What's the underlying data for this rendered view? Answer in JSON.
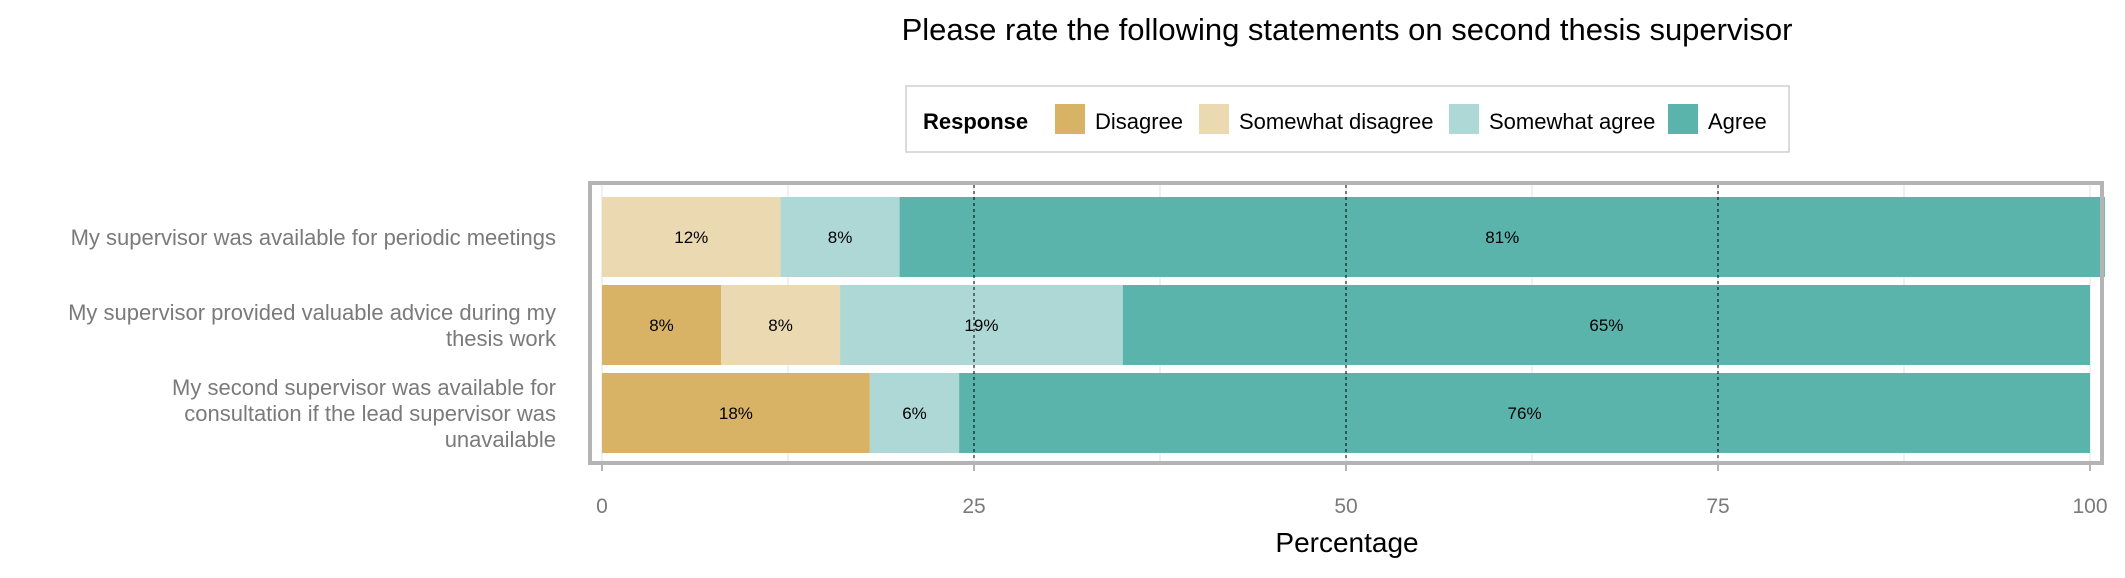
{
  "chart_data": {
    "type": "bar",
    "orientation": "horizontal",
    "stacked": true,
    "title": "Please rate the following statements on second thesis supervisor",
    "xlabel": "Percentage",
    "ylabel": "",
    "xlim": [
      0,
      100
    ],
    "xticks": [
      "0",
      "25",
      "50",
      "75",
      "100"
    ],
    "grid": true,
    "legend": {
      "title": "Response",
      "position": "top"
    },
    "categories": [
      [
        "My supervisor was available for periodic meetings"
      ],
      [
        "My supervisor provided valuable advice during my",
        "thesis work"
      ],
      [
        "My second supervisor was available for",
        "consultation if the lead supervisor was",
        "unavailable"
      ]
    ],
    "series": [
      {
        "name": "Disagree",
        "color": "#d8b365",
        "values": [
          0,
          8,
          18
        ],
        "labels": [
          "",
          "8%",
          "18%"
        ]
      },
      {
        "name": "Somewhat disagree",
        "color": "#ebd9b2",
        "values": [
          12,
          8,
          0
        ],
        "labels": [
          "12%",
          "8%",
          ""
        ]
      },
      {
        "name": "Somewhat agree",
        "color": "#add8d5",
        "values": [
          8,
          19,
          6
        ],
        "labels": [
          "8%",
          "19%",
          "6%"
        ]
      },
      {
        "name": "Agree",
        "color": "#5ab4ac",
        "values": [
          81,
          65,
          76
        ],
        "labels": [
          "81%",
          "65%",
          "76%"
        ]
      }
    ]
  }
}
